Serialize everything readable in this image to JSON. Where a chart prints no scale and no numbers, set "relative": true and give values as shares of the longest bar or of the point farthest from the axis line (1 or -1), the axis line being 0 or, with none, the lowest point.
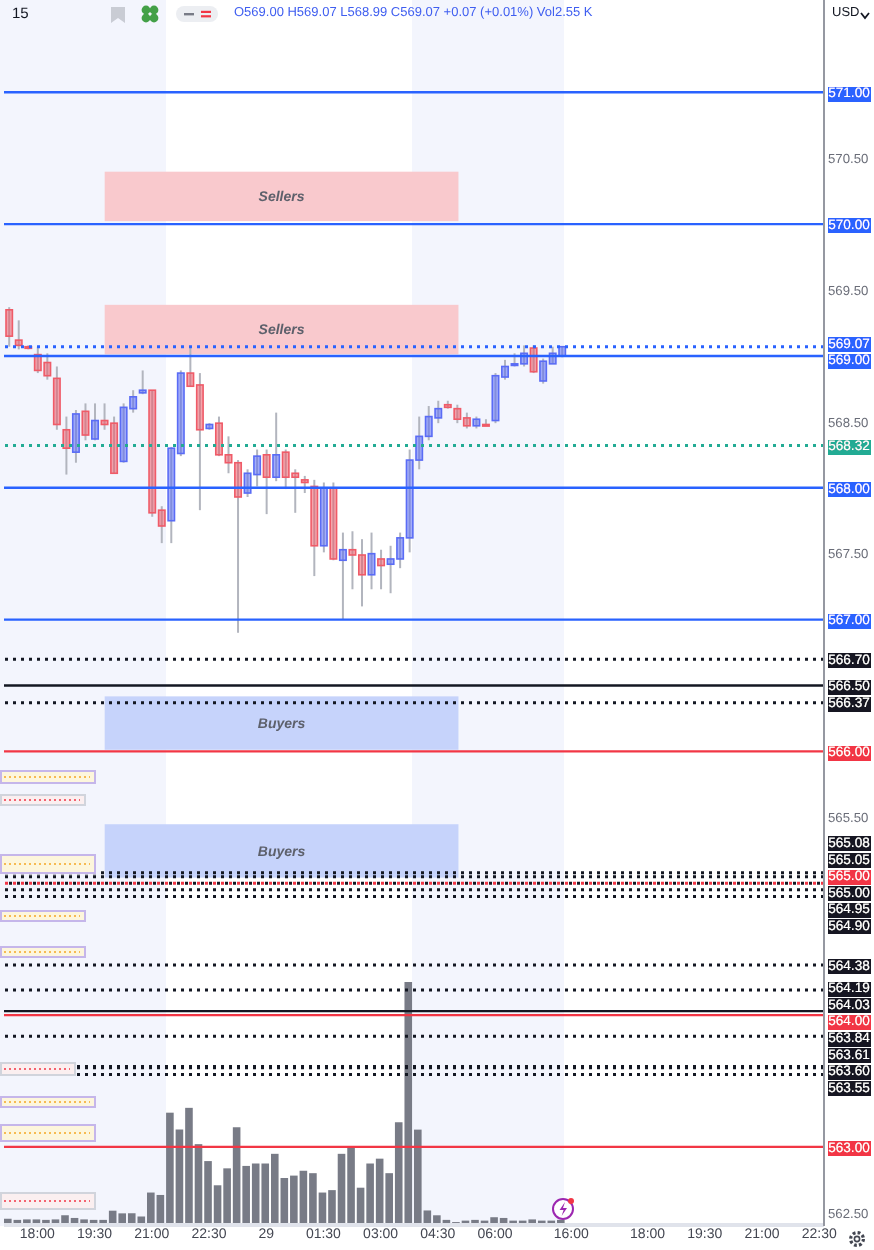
{
  "chart_data": [
    {
      "type": "candlestick",
      "title": "15",
      "subtitle": "O569.00 H569.07 L568.99 C569.07 +0.07 (+0.01%) Vol2.55 K",
      "categories": [
        null,
        null,
        null,
        "18:00",
        null,
        null,
        null,
        null,
        null,
        "19:30",
        null,
        null,
        null,
        null,
        null,
        "21:00",
        null,
        null,
        null,
        null,
        null,
        "22:30",
        null,
        null,
        null,
        null,
        null,
        "29",
        null,
        null,
        null,
        null,
        null,
        "01:30",
        null,
        null,
        null,
        null,
        null,
        "03:00",
        null,
        null,
        null,
        null,
        null,
        "04:30",
        null,
        null,
        null,
        null,
        null,
        "06:00",
        null,
        null,
        null,
        null,
        null,
        null,
        null,
        "16:00",
        null,
        null,
        null,
        null,
        null,
        null,
        null,
        "18:00",
        null,
        null,
        null,
        null,
        null,
        "19:30",
        null,
        null,
        null,
        null,
        null,
        "21:00",
        null,
        null,
        null,
        null,
        null,
        "22:30"
      ],
      "ohlc": [
        [
          569.35,
          569.37,
          569.07,
          569.15
        ],
        [
          569.12,
          569.27,
          569.05,
          569.08
        ],
        [
          569.07,
          569.08,
          569.05,
          569.06
        ],
        [
          569.01,
          569.07,
          568.87,
          568.89
        ],
        [
          568.95,
          569.02,
          568.82,
          568.85
        ],
        [
          568.83,
          568.92,
          568.44,
          568.48
        ],
        [
          568.44,
          568.54,
          568.1,
          568.3
        ],
        [
          568.27,
          568.59,
          568.19,
          568.56
        ],
        [
          568.58,
          568.64,
          568.36,
          568.4
        ],
        [
          568.37,
          568.64,
          568.36,
          568.51
        ],
        [
          568.51,
          568.64,
          568.44,
          568.48
        ],
        [
          568.49,
          568.54,
          568.11,
          568.11
        ],
        [
          568.2,
          568.64,
          568.19,
          568.61
        ],
        [
          568.6,
          568.74,
          568.57,
          568.69
        ],
        [
          568.72,
          568.89,
          568.71,
          568.74
        ],
        [
          568.74,
          568.74,
          567.78,
          567.81
        ],
        [
          567.83,
          567.86,
          567.58,
          567.71
        ],
        [
          567.75,
          568.31,
          567.58,
          568.3
        ],
        [
          568.26,
          568.89,
          568.24,
          568.87
        ],
        [
          568.87,
          569.06,
          568.77,
          568.77
        ],
        [
          568.78,
          568.87,
          567.83,
          568.44
        ],
        [
          568.45,
          568.49,
          568.44,
          568.48
        ],
        [
          568.49,
          568.54,
          568.24,
          568.25
        ],
        [
          568.25,
          568.39,
          568.11,
          568.19
        ],
        [
          568.19,
          568.21,
          566.9,
          567.93
        ],
        [
          567.96,
          568.14,
          567.93,
          568.11
        ],
        [
          568.1,
          568.29,
          568.01,
          568.24
        ],
        [
          568.25,
          568.29,
          567.8,
          568.08
        ],
        [
          568.08,
          568.57,
          568.05,
          568.25
        ],
        [
          568.27,
          568.29,
          567.99,
          568.08
        ],
        [
          568.11,
          568.14,
          567.81,
          568.08
        ],
        [
          568.06,
          568.09,
          567.96,
          568.04
        ],
        [
          568.01,
          568.06,
          567.33,
          567.56
        ],
        [
          567.56,
          568.04,
          567.51,
          568
        ],
        [
          568,
          568.04,
          567.45,
          567.46
        ],
        [
          567.45,
          567.66,
          567,
          567.53
        ],
        [
          567.53,
          567.67,
          567.23,
          567.49
        ],
        [
          567.49,
          567.61,
          567.1,
          567.34
        ],
        [
          567.34,
          567.66,
          567.23,
          567.5
        ],
        [
          567.46,
          567.53,
          567.23,
          567.41
        ],
        [
          567.42,
          567.56,
          567.2,
          567.46
        ],
        [
          567.46,
          567.66,
          567.39,
          567.62
        ],
        [
          567.62,
          568.29,
          567.51,
          568.21
        ],
        [
          568.21,
          568.54,
          568.14,
          568.39
        ],
        [
          568.39,
          568.62,
          568.36,
          568.54
        ],
        [
          568.53,
          568.66,
          568.49,
          568.6
        ],
        [
          568.63,
          568.66,
          568.6,
          568.61
        ],
        [
          568.6,
          568.63,
          568.49,
          568.52
        ],
        [
          568.53,
          568.57,
          568.45,
          568.47
        ],
        [
          568.47,
          568.54,
          568.45,
          568.52
        ],
        [
          568.48,
          568.52,
          568.47,
          568.47
        ],
        [
          568.51,
          568.87,
          568.49,
          568.85
        ],
        [
          568.84,
          568.97,
          568.82,
          568.92
        ],
        [
          568.93,
          569.02,
          568.92,
          568.94
        ],
        [
          568.94,
          569.08,
          568.92,
          569.02
        ],
        [
          569.06,
          569.08,
          568.87,
          568.88
        ],
        [
          568.81,
          568.98,
          568.79,
          568.96
        ],
        [
          568.94,
          569.07,
          568.94,
          569.02
        ],
        [
          569,
          569.07,
          568.99,
          569.07
        ],
        null,
        null,
        null,
        null,
        null,
        null,
        null,
        null,
        null,
        null,
        null,
        null,
        null,
        null,
        null,
        null,
        null,
        null,
        null,
        null,
        null,
        null,
        null,
        null,
        null,
        null,
        null
      ],
      "colors": [
        "#ef5b68",
        "#ef5b68",
        "#ef5b68",
        "#ef5b68",
        "#ef5b68",
        "#ef5b68",
        "#ef5b68",
        "#5a6cf5",
        "#ef5b68",
        "#5a6cf5",
        "#ef5b68",
        "#ef5b68",
        "#5a6cf5",
        "#5a6cf5",
        "#5a6cf5",
        "#ef5b68",
        "#ef5b68",
        "#5a6cf5",
        "#5a6cf5",
        "#ef5b68",
        "#ef5b68",
        "#5a6cf5",
        "#ef5b68",
        "#ef5b68",
        "#ef5b68",
        "#5a6cf5",
        "#5a6cf5",
        "#ef5b68",
        "#5a6cf5",
        "#ef5b68",
        "#ef5b68",
        "#ef5b68",
        "#ef5b68",
        "#5a6cf5",
        "#ef5b68",
        "#5a6cf5",
        "#ef5b68",
        "#ef5b68",
        "#5a6cf5",
        "#ef5b68",
        "#5a6cf5",
        "#5a6cf5",
        "#5a6cf5",
        "#5a6cf5",
        "#5a6cf5",
        "#5a6cf5",
        "#ef5b68",
        "#ef5b68",
        "#ef5b68",
        "#5a6cf5",
        "#ef5b68",
        "#5a6cf5",
        "#5a6cf5",
        "#5a6cf5",
        "#5a6cf5",
        "#ef5b68",
        "#5a6cf5",
        "#5a6cf5",
        "#5a6cf5",
        null,
        null,
        null,
        null,
        null,
        null,
        null,
        null,
        null,
        null,
        null,
        null,
        null,
        null,
        null,
        null,
        null,
        null,
        null,
        null,
        null,
        null,
        null,
        null,
        null,
        null,
        null
      ],
      "ylim": [
        562.4,
        571.7
      ],
      "yticks": [
        {
          "value": 562.5,
          "label": "562.50"
        },
        {
          "value": 565.5,
          "label": "565.50"
        },
        {
          "value": 567.5,
          "label": "567.50"
        },
        {
          "value": 568.5,
          "label": "568.50"
        },
        {
          "value": 569.5,
          "label": "569.50"
        },
        {
          "value": 570.5,
          "label": "570.50"
        }
      ],
      "ref_lines": [
        {
          "axis": "y",
          "value": 571,
          "label": "571.00",
          "color": "#2962ff",
          "line_style": "solid"
        },
        {
          "axis": "y",
          "value": 570,
          "label": "570.00",
          "color": "#2962ff",
          "line_style": "solid"
        },
        {
          "axis": "y",
          "value": 569.07,
          "label": "569.07",
          "color": "#2962ff",
          "line_style": "dotted"
        },
        {
          "axis": "y",
          "value": 569,
          "label": "569.00",
          "color": "#2962ff",
          "line_style": "solid"
        },
        {
          "axis": "y",
          "value": 568.32,
          "label": "568.32",
          "color": "#22ab94",
          "line_style": "dotted"
        },
        {
          "axis": "y",
          "value": 568,
          "label": "568.00",
          "color": "#2962ff",
          "line_style": "solid"
        },
        {
          "axis": "y",
          "value": 567,
          "label": "567.00",
          "color": "#2962ff",
          "line_style": "solid"
        },
        {
          "axis": "y",
          "value": 566.7,
          "label": "566.70",
          "color": "#131722",
          "line_style": "dotted"
        },
        {
          "axis": "y",
          "value": 566.5,
          "label": "566.50",
          "color": "#131722",
          "line_style": "solid"
        },
        {
          "axis": "y",
          "value": 566.37,
          "label": "566.37",
          "color": "#131722",
          "line_style": "dotted"
        },
        {
          "axis": "y",
          "value": 566,
          "label": "566.00",
          "color": "#f23645",
          "line_style": "solid"
        },
        {
          "axis": "y",
          "value": 565.08,
          "label": "565.08",
          "color": "#131722",
          "line_style": "dotted"
        },
        {
          "axis": "y",
          "value": 565.05,
          "label": "565.05",
          "color": "#131722",
          "line_style": "dotted"
        },
        {
          "axis": "y",
          "value": 565,
          "label": "565.00",
          "color": "#f23645",
          "line_style": "dotted"
        },
        {
          "axis": "y",
          "value": 565,
          "label": "565.00",
          "color": "#131722",
          "line_style": "dotted"
        },
        {
          "axis": "y",
          "value": 564.95,
          "label": "564.95",
          "color": "#131722",
          "line_style": "dotted"
        },
        {
          "axis": "y",
          "value": 564.9,
          "label": "564.90",
          "color": "#131722",
          "line_style": "dotted"
        },
        {
          "axis": "y",
          "value": 564.38,
          "label": "564.38",
          "color": "#131722",
          "line_style": "dotted"
        },
        {
          "axis": "y",
          "value": 564.19,
          "label": "564.19",
          "color": "#131722",
          "line_style": "dotted"
        },
        {
          "axis": "y",
          "value": 564.03,
          "label": "564.03",
          "color": "#131722",
          "line_style": "solid"
        },
        {
          "axis": "y",
          "value": 564,
          "label": "564.00",
          "color": "#f23645",
          "line_style": "solid"
        },
        {
          "axis": "y",
          "value": 563.84,
          "label": "563.84",
          "color": "#131722",
          "line_style": "dotted"
        },
        {
          "axis": "y",
          "value": 563.61,
          "label": "563.61",
          "color": "#131722",
          "line_style": "dotted"
        },
        {
          "axis": "y",
          "value": 563.6,
          "label": "563.60",
          "color": "#131722",
          "line_style": "dotted"
        },
        {
          "axis": "y",
          "value": 563.55,
          "label": "563.55",
          "color": "#131722",
          "line_style": "dotted"
        },
        {
          "axis": "y",
          "value": 563,
          "label": "563.00",
          "color": "#f23645",
          "line_style": "solid"
        }
      ],
      "bands": [
        {
          "axis": "y",
          "from": 570.03,
          "to": 570.39,
          "label": "Sellers",
          "color": "#f9c9cd"
        },
        {
          "axis": "y",
          "from": 569.02,
          "to": 569.38,
          "label": "Sellers",
          "color": "#f9c9cd"
        },
        {
          "axis": "y",
          "from": 566.02,
          "to": 566.41,
          "label": "Buyers",
          "color": "#c6d3fb"
        },
        {
          "axis": "y",
          "from": 565.05,
          "to": 565.44,
          "label": "Buyers",
          "color": "#c6d3fb"
        }
      ],
      "annotations": [
        "USD"
      ]
    },
    {
      "type": "bar",
      "relative": true,
      "tick_labels": false,
      "color": "#787b86",
      "categories": [
        null,
        null,
        null,
        null,
        null,
        null,
        null,
        null,
        null,
        null,
        null,
        null,
        null,
        null,
        null,
        null,
        null,
        null,
        null,
        null,
        null,
        null,
        null,
        null,
        null,
        null,
        null,
        null,
        null,
        null,
        null,
        null,
        null,
        null,
        null,
        null,
        null,
        null,
        null,
        null,
        null,
        null,
        null,
        null,
        null,
        null,
        null,
        null,
        null,
        null,
        null,
        null,
        null,
        null,
        null,
        null,
        null,
        null,
        null,
        null,
        null,
        null,
        null,
        null,
        null,
        null,
        null,
        null,
        null,
        null,
        null,
        null,
        null,
        null,
        null,
        null,
        null,
        null,
        null,
        null,
        null,
        null,
        null,
        null,
        null,
        null
      ],
      "values": [
        0.022,
        0.017,
        0.019,
        0.019,
        0.017,
        0.019,
        0.036,
        0.025,
        0.019,
        0.017,
        0.017,
        0.055,
        0.044,
        0.044,
        0.031,
        0.13,
        0.12,
        0.46,
        0.39,
        0.48,
        0.33,
        0.26,
        0.16,
        0.23,
        0.4,
        0.24,
        0.25,
        0.25,
        0.29,
        0.19,
        0.2,
        0.22,
        0.21,
        0.13,
        0.14,
        0.29,
        0.32,
        0.15,
        0.25,
        0.27,
        0.21,
        0.42,
        1,
        0.39,
        0.056,
        0.036,
        0.017,
        0.008,
        0.014,
        0.017,
        0.014,
        0.028,
        0.025,
        0.014,
        0.014,
        0.019,
        0.014,
        0.014,
        0.017,
        null,
        null,
        null,
        null,
        null,
        null,
        null,
        null,
        null,
        null,
        null,
        null,
        null,
        null,
        null,
        null,
        null,
        null,
        null,
        null,
        null,
        null,
        null,
        null,
        null,
        null,
        null
      ]
    }
  ]
}
